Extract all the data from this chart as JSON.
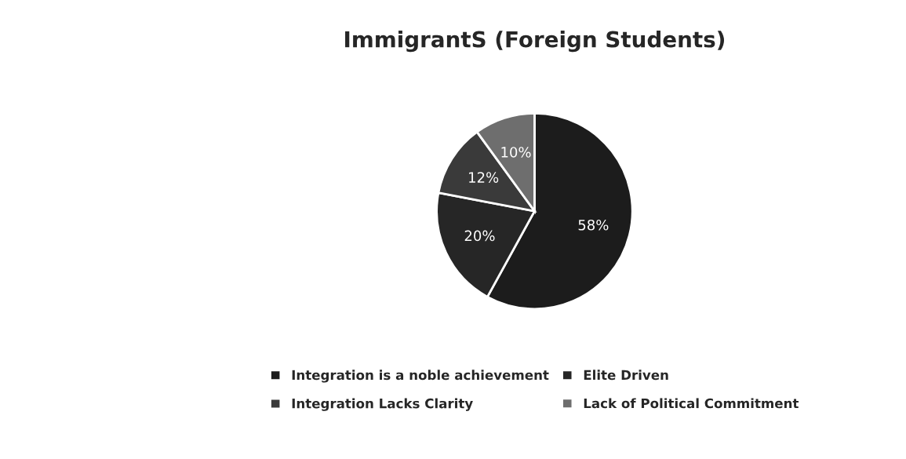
{
  "chart_data": {
    "type": "pie",
    "title": "ImmigrantS (Foreign Students)",
    "categories": [
      "Integration is a noble achievement",
      "Elite Driven",
      "Integration Lacks Clarity",
      "Lack of Political Commitment"
    ],
    "values": [
      58,
      20,
      12,
      10
    ],
    "colors": [
      "#1c1c1c",
      "#262626",
      "#3a3a3a",
      "#6e6e6e"
    ],
    "value_labels": [
      "58%",
      "20%",
      "12%",
      "10%"
    ],
    "legend": "bottom"
  }
}
